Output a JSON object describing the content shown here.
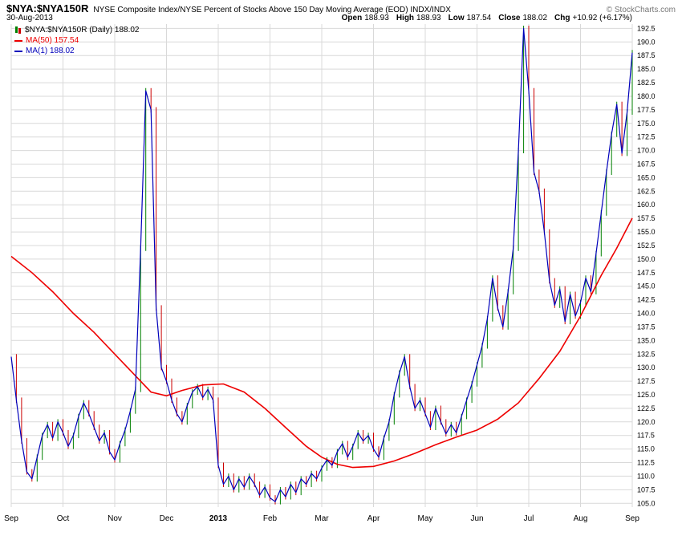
{
  "header": {
    "symbol": "$NYA:$NYA150R",
    "description": "NYSE Composite Index/NYSE Percent of Stocks Above 150 Day Moving Average (EOD) INDX/INDX",
    "copyright": "© StockCharts.com",
    "date": "30-Aug-2013",
    "quote": {
      "open_label": "Open",
      "open": "188.93",
      "high_label": "High",
      "high": "188.93",
      "low_label": "Low",
      "low": "187.54",
      "close_label": "Close",
      "close": "188.02",
      "chg_label": "Chg",
      "chg": "+10.92 (+6.17%)"
    }
  },
  "legend": {
    "main": "$NYA:$NYA150R (Daily) 188.02",
    "ma50": "MA(50) 157.54",
    "ma1": "MA(1) 188.02"
  },
  "chart_data": {
    "type": "line",
    "title": "$NYA:$NYA150R (Daily)",
    "xlabel": "",
    "ylabel": "",
    "legend_position": "top-left",
    "grid": true,
    "grid_color": "#d9d9d9",
    "up_color": "#008000",
    "down_color": "#cc0000",
    "axis_side": "right",
    "ylim": [
      104.3,
      193.3
    ],
    "y_ticks": [
      192.5,
      190.0,
      187.5,
      185.0,
      182.5,
      180.0,
      177.5,
      175.0,
      172.5,
      170.0,
      167.5,
      165.0,
      162.5,
      160.0,
      157.5,
      155.0,
      152.5,
      150.0,
      147.5,
      145.0,
      142.5,
      140.0,
      137.5,
      135.0,
      132.5,
      130.0,
      127.5,
      125.0,
      122.5,
      120.0,
      117.5,
      115.0,
      112.5,
      110.0,
      107.5,
      105.0
    ],
    "x_labels": [
      {
        "t": "Sep",
        "b": false
      },
      {
        "t": "Oct",
        "b": false
      },
      {
        "t": "Nov",
        "b": false
      },
      {
        "t": "Dec",
        "b": false
      },
      {
        "t": "2013",
        "b": true
      },
      {
        "t": "Feb",
        "b": false
      },
      {
        "t": "Mar",
        "b": false
      },
      {
        "t": "Apr",
        "b": false
      },
      {
        "t": "May",
        "b": false
      },
      {
        "t": "Jun",
        "b": false
      },
      {
        "t": "Jul",
        "b": false
      },
      {
        "t": "Aug",
        "b": false
      },
      {
        "t": "Sep",
        "b": false
      }
    ],
    "series": [
      {
        "name": "$NYA:$NYA150R close (MA(1))",
        "color": "#0000bb",
        "x_start": 0,
        "x_step": 0.1,
        "values": [
          132.0,
          124.0,
          116.5,
          110.8,
          109.5,
          113.5,
          117.5,
          119.5,
          117.0,
          120.0,
          118.0,
          115.5,
          117.5,
          121.0,
          123.5,
          121.5,
          119.0,
          116.5,
          118.0,
          114.5,
          113.0,
          116.0,
          118.5,
          122.0,
          126.0,
          152.0,
          181.0,
          177.5,
          141.0,
          130.0,
          127.5,
          124.0,
          121.5,
          120.0,
          123.0,
          125.5,
          126.5,
          124.5,
          126.0,
          124.0,
          112.0,
          108.5,
          110.0,
          107.5,
          109.5,
          108.0,
          110.0,
          108.5,
          106.5,
          108.0,
          106.0,
          105.3,
          107.5,
          106.2,
          108.5,
          107.0,
          109.5,
          108.5,
          110.5,
          109.5,
          111.5,
          113.0,
          112.0,
          114.5,
          116.0,
          113.5,
          115.5,
          118.0,
          116.5,
          117.5,
          115.0,
          113.5,
          117.0,
          120.0,
          125.0,
          129.0,
          132.0,
          126.5,
          122.5,
          124.0,
          121.5,
          119.0,
          122.5,
          120.0,
          117.8,
          119.5,
          118.0,
          121.0,
          124.0,
          127.0,
          130.5,
          134.0,
          139.0,
          146.5,
          141.0,
          137.5,
          144.0,
          152.0,
          170.0,
          192.5,
          181.0,
          166.0,
          162.5,
          155.0,
          146.0,
          141.5,
          144.5,
          138.5,
          143.5,
          139.5,
          142.0,
          146.5,
          144.0,
          151.0,
          158.5,
          166.0,
          173.0,
          178.5,
          169.5,
          177.1,
          188.02
        ]
      },
      {
        "name": "MA(50)",
        "color": "#ee0000",
        "points": [
          [
            0,
            150.5
          ],
          [
            0.4,
            147.5
          ],
          [
            0.8,
            144.0
          ],
          [
            1.2,
            140.0
          ],
          [
            1.6,
            136.5
          ],
          [
            2.0,
            132.5
          ],
          [
            2.4,
            128.5
          ],
          [
            2.7,
            125.5
          ],
          [
            3.0,
            124.8
          ],
          [
            3.3,
            125.8
          ],
          [
            3.7,
            126.8
          ],
          [
            4.1,
            127.0
          ],
          [
            4.5,
            125.5
          ],
          [
            4.9,
            122.5
          ],
          [
            5.3,
            119.0
          ],
          [
            5.7,
            115.5
          ],
          [
            6.0,
            113.5
          ],
          [
            6.3,
            112.2
          ],
          [
            6.6,
            111.6
          ],
          [
            7.0,
            111.8
          ],
          [
            7.4,
            112.8
          ],
          [
            7.8,
            114.2
          ],
          [
            8.2,
            115.8
          ],
          [
            8.6,
            117.2
          ],
          [
            9.0,
            118.5
          ],
          [
            9.4,
            120.5
          ],
          [
            9.8,
            123.5
          ],
          [
            10.2,
            128.0
          ],
          [
            10.6,
            133.0
          ],
          [
            11.0,
            139.5
          ],
          [
            11.4,
            147.0
          ],
          [
            11.7,
            152.0
          ],
          [
            12.0,
            157.54
          ]
        ]
      }
    ]
  }
}
